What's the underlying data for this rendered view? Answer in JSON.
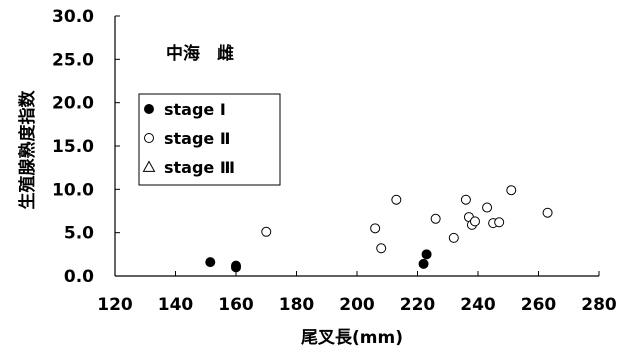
{
  "chart_data": {
    "type": "scatter",
    "title": "",
    "annotation": "中海　雌",
    "xlabel": "尾叉長(mm)",
    "ylabel": "生殖腺熟度指数",
    "xlim": [
      120,
      280
    ],
    "ylim": [
      0,
      30
    ],
    "x_ticks": [
      "120",
      "140",
      "160",
      "180",
      "200",
      "220",
      "240",
      "260",
      "280"
    ],
    "y_ticks": [
      "0.0",
      "5.0",
      "10.0",
      "15.0",
      "20.0",
      "25.0",
      "30.0"
    ],
    "grid": false,
    "legend_position": "upper-left",
    "series": [
      {
        "name": "stage Ⅰ",
        "marker": "filled-circle",
        "color": "#000000",
        "points": [
          [
            151.5,
            1.6
          ],
          [
            160,
            1.2
          ],
          [
            160,
            1.0
          ],
          [
            222,
            1.4
          ],
          [
            223,
            2.5
          ]
        ]
      },
      {
        "name": "stage Ⅱ",
        "marker": "open-circle",
        "color": "#000000",
        "points": [
          [
            170,
            5.1
          ],
          [
            206,
            5.5
          ],
          [
            208,
            3.2
          ],
          [
            213,
            8.8
          ],
          [
            226,
            6.6
          ],
          [
            232,
            4.4
          ],
          [
            236,
            8.8
          ],
          [
            237,
            6.8
          ],
          [
            238,
            5.9
          ],
          [
            239,
            6.3
          ],
          [
            243,
            7.9
          ],
          [
            245,
            6.1
          ],
          [
            247,
            6.2
          ],
          [
            251,
            9.9
          ],
          [
            263,
            7.3
          ]
        ]
      },
      {
        "name": "stage Ⅲ",
        "marker": "open-triangle",
        "color": "#000000",
        "points": []
      }
    ]
  }
}
